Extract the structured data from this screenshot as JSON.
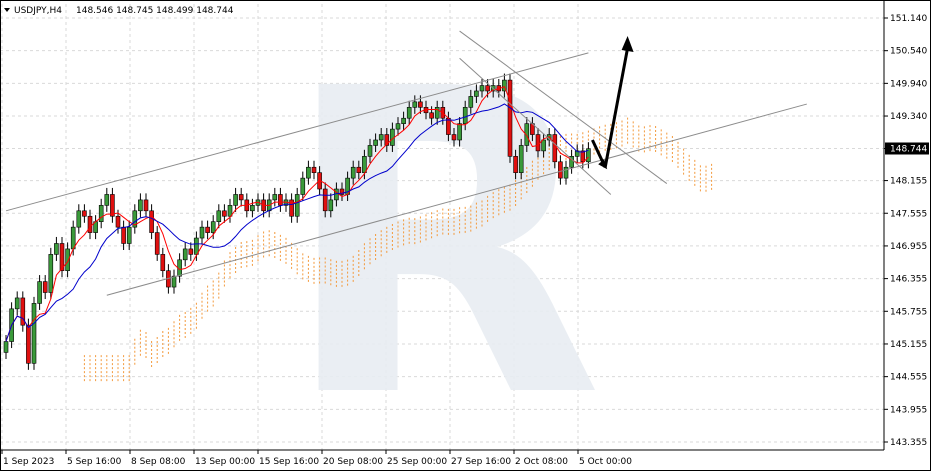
{
  "header": {
    "symbol": "USDJPY,H4",
    "ohlc": "148.546 148.745 148.499 148.744"
  },
  "watermark": "R",
  "chart_data": {
    "type": "candlestick",
    "symbol": "USDJPY",
    "timeframe": "H4",
    "ohlc_last": {
      "open": 148.546,
      "high": 148.745,
      "low": 148.499,
      "close": 148.744
    },
    "current_price": "148.744",
    "y_ticks": [
      "151.140",
      "150.540",
      "149.940",
      "149.340",
      "148.744",
      "148.155",
      "147.555",
      "146.955",
      "146.355",
      "145.755",
      "145.155",
      "144.555",
      "143.955",
      "143.355"
    ],
    "ylim": [
      143.355,
      151.14
    ],
    "x_ticks": [
      "1 Sep 2023",
      "5 Sep 16:00",
      "8 Sep 08:00",
      "13 Sep 00:00",
      "15 Sep 16:00",
      "20 Sep 08:00",
      "25 Sep 00:00",
      "27 Sep 16:00",
      "2 Oct 08:00",
      "5 Oct 00:00"
    ],
    "candle_count": 105,
    "closes": [
      145.2,
      145.8,
      146.0,
      145.5,
      144.8,
      145.9,
      146.3,
      146.1,
      146.8,
      147.0,
      146.5,
      146.9,
      147.3,
      147.6,
      147.5,
      147.2,
      147.4,
      147.7,
      147.9,
      147.5,
      147.3,
      147.0,
      147.3,
      147.6,
      147.8,
      147.6,
      147.2,
      146.8,
      146.5,
      146.2,
      146.4,
      146.7,
      146.9,
      146.8,
      147.1,
      147.3,
      147.2,
      147.4,
      147.6,
      147.5,
      147.7,
      147.9,
      147.8,
      147.6,
      147.7,
      147.8,
      147.6,
      147.8,
      147.9,
      147.7,
      147.8,
      147.5,
      147.9,
      148.2,
      148.4,
      148.3,
      148.0,
      147.6,
      147.8,
      148.0,
      147.9,
      148.2,
      148.4,
      148.3,
      148.6,
      148.8,
      148.9,
      149.0,
      148.8,
      149.1,
      149.2,
      149.3,
      149.5,
      149.6,
      149.5,
      149.4,
      149.3,
      149.5,
      149.3,
      149.0,
      148.9,
      149.2,
      149.5,
      149.7,
      149.8,
      149.9,
      149.8,
      149.9,
      149.8,
      150.0,
      148.6,
      148.3,
      148.8,
      149.2,
      149.0,
      148.7,
      148.9,
      149.0,
      148.5,
      148.2,
      148.4,
      148.6,
      148.7,
      148.5,
      148.74
    ],
    "series": [
      {
        "name": "Tenkan-sen",
        "color": "#ff0000"
      },
      {
        "name": "Kijun-sen",
        "color": "#0000cc"
      },
      {
        "name": "Ichimoku cloud",
        "color": "#f39a3c"
      }
    ],
    "channel": {
      "upper": [
        [
          0,
          147.6
        ],
        [
          104,
          150.5
        ]
      ],
      "lower": [
        [
          18,
          146.05
        ],
        [
          143,
          149.56
        ]
      ]
    },
    "forecast": {
      "from": 148.9,
      "dip": 148.4,
      "target": 150.7
    },
    "grid": true
  }
}
